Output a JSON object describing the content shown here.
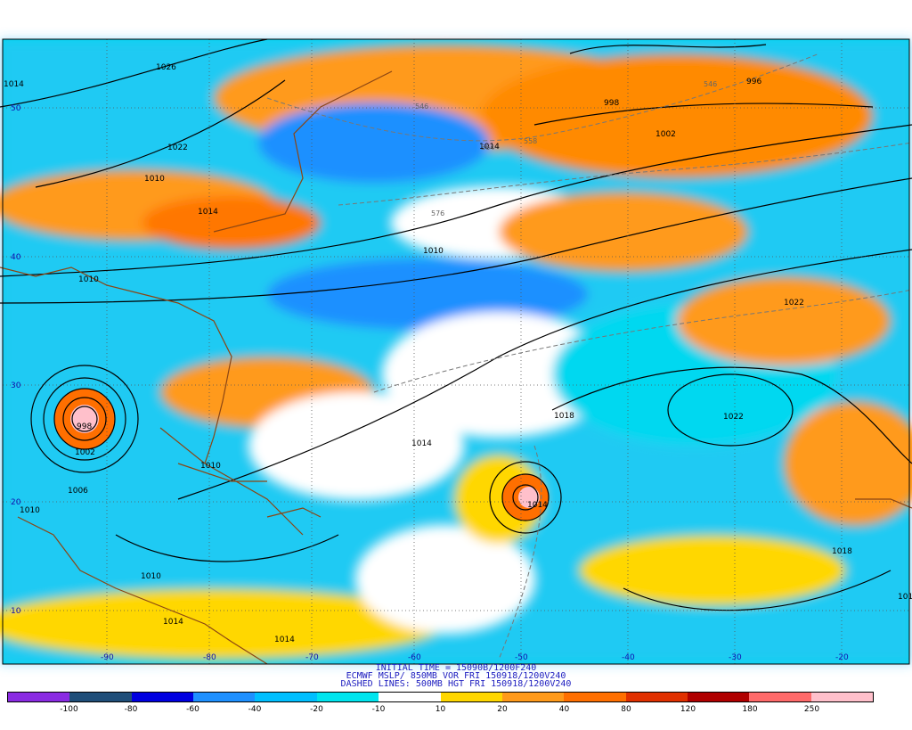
{
  "header": {
    "line1": "INITIAL TIME = 15090B/1200F240",
    "line2": "ECMWF MSLP/ 850MB VOR FRI 150918/1200V240",
    "line3": "DASHED LINES: 500MB HGT FRI 150918/1200V240"
  },
  "legend": {
    "colors": [
      "#8a2be2",
      "#1f4e79",
      "#0000e0",
      "#1e90ff",
      "#00bfff",
      "#00e5ee",
      "#ffffff",
      "#ffd700",
      "#ff9a1a",
      "#ff6f00",
      "#e03000",
      "#b00000",
      "#ff6a6a",
      "#ffc0cb"
    ],
    "labels": [
      "-100",
      "-80",
      "-60",
      "-40",
      "-20",
      "-10",
      "10",
      "20",
      "40",
      "80",
      "120",
      "180",
      "250"
    ]
  },
  "axes": {
    "lon_labels": [
      "-90",
      "-80",
      "-70",
      "-60",
      "-50",
      "-40",
      "-30",
      "-20"
    ],
    "lat_labels": [
      "50",
      "40",
      "30",
      "20",
      "10"
    ]
  },
  "isobars": [
    "1014",
    "1026",
    "1022",
    "1010",
    "1014",
    "1010",
    "1010",
    "996",
    "998",
    "1002",
    "998",
    "1002",
    "1006",
    "1010",
    "1010",
    "1014",
    "1010",
    "1014",
    "1018",
    "1022",
    "1022",
    "1014",
    "1018",
    "1014",
    "1014",
    "1014"
  ],
  "heights": [
    "546",
    "558",
    "546",
    "576",
    "564"
  ]
}
